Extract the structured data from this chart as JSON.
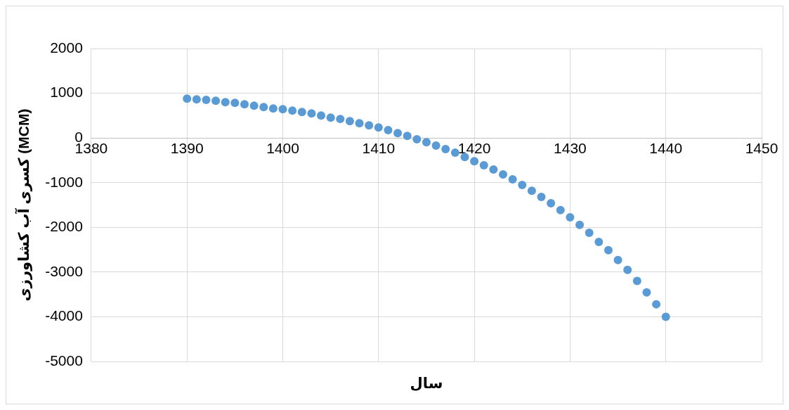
{
  "chart_data": {
    "type": "scatter",
    "xlabel": "سال",
    "ylabel": "کسری آب کشاورزی (MCM)",
    "xlim": [
      1380,
      1450
    ],
    "xticks": [
      1380,
      1390,
      1400,
      1410,
      1420,
      1430,
      1440,
      1450
    ],
    "ylim": [
      -5000,
      2000
    ],
    "yticks": [
      -5000,
      -4000,
      -3000,
      -2000,
      -1000,
      0,
      1000,
      2000
    ],
    "grid": true,
    "legend": false,
    "marker": "circle",
    "series": [
      {
        "color": "#5b9bd5",
        "x": [
          1390,
          1391,
          1392,
          1393,
          1394,
          1395,
          1396,
          1397,
          1398,
          1399,
          1400,
          1401,
          1402,
          1403,
          1404,
          1405,
          1406,
          1407,
          1408,
          1409,
          1410,
          1411,
          1412,
          1413,
          1414,
          1415,
          1416,
          1417,
          1418,
          1419,
          1420,
          1421,
          1422,
          1423,
          1424,
          1425,
          1426,
          1427,
          1428,
          1429,
          1430,
          1431,
          1432,
          1433,
          1434,
          1435,
          1436,
          1437,
          1438,
          1439,
          1440
        ],
        "values": [
          880,
          865,
          850,
          832,
          800,
          785,
          755,
          720,
          690,
          660,
          645,
          610,
          580,
          550,
          500,
          455,
          425,
          375,
          330,
          280,
          235,
          175,
          110,
          45,
          -30,
          -95,
          -170,
          -250,
          -330,
          -425,
          -520,
          -610,
          -705,
          -815,
          -925,
          -1050,
          -1180,
          -1320,
          -1460,
          -1615,
          -1775,
          -1945,
          -2120,
          -2325,
          -2510,
          -2730,
          -2950,
          -3200,
          -3455,
          -3720,
          -4000
        ]
      }
    ]
  }
}
